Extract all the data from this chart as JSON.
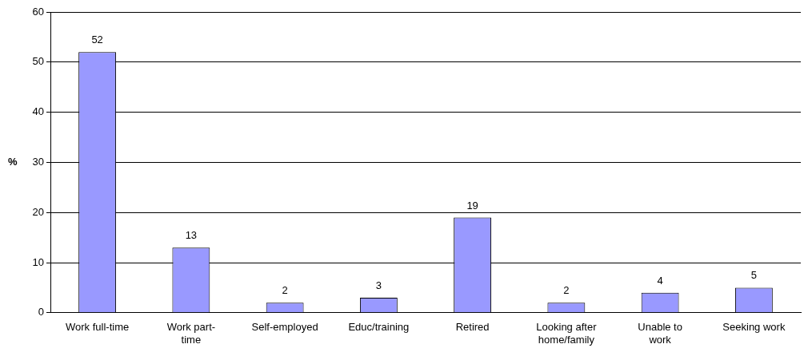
{
  "chart_data": {
    "type": "bar",
    "ylabel": "%",
    "categories": [
      "Work full-time",
      "Work part-\ntime",
      "Self-employed",
      "Educ/training",
      "Retired",
      "Looking after\nhome/family",
      "Unable to\nwork",
      "Seeking work"
    ],
    "values": [
      52,
      13,
      2,
      3,
      19,
      2,
      4,
      5
    ],
    "color": "#9999ff",
    "ylim": [
      0,
      60
    ],
    "yticks": [
      0,
      10,
      20,
      30,
      40,
      50,
      60
    ],
    "grid": "y",
    "data_labels": true,
    "legend": false
  }
}
